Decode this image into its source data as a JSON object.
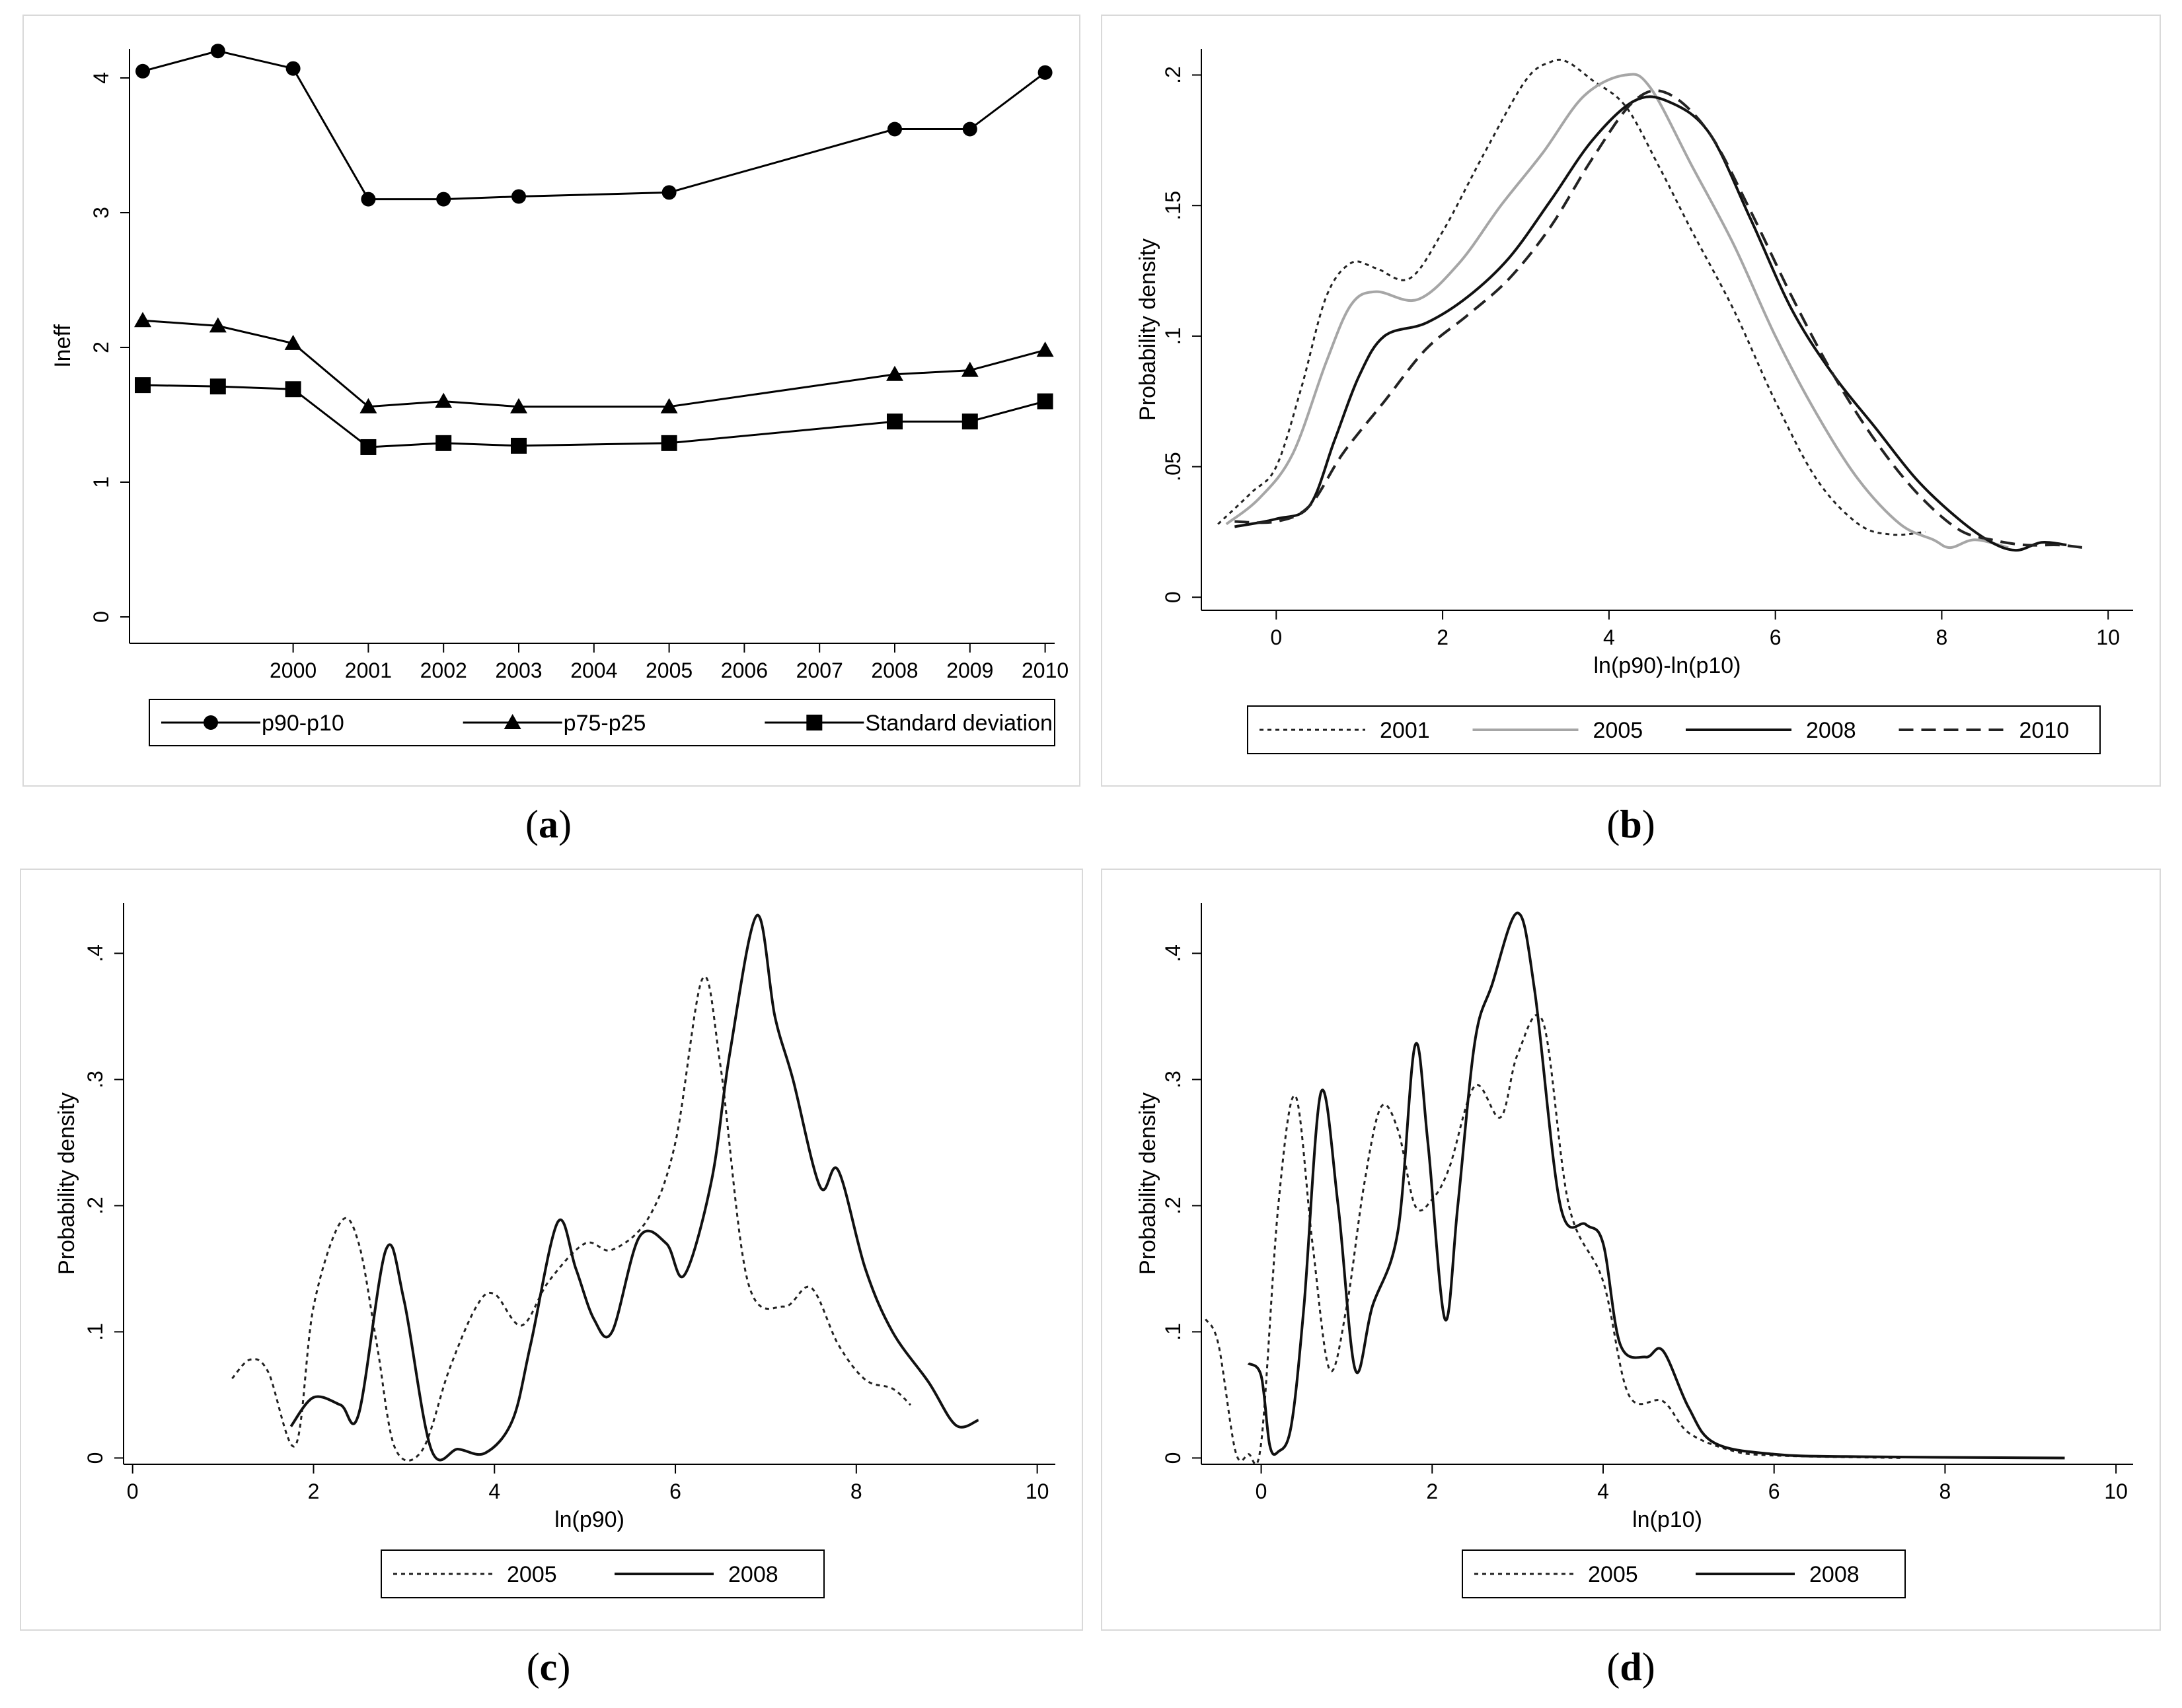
{
  "panel_labels": [
    {
      "open": "(",
      "letter": "a",
      "close": ")"
    },
    {
      "open": "(",
      "letter": "b",
      "close": ")"
    },
    {
      "open": "(",
      "letter": "c",
      "close": ")"
    },
    {
      "open": "(",
      "letter": "d",
      "close": ")"
    }
  ],
  "chart_data": [
    {
      "id": "a",
      "type": "line",
      "title": "",
      "ylabel": "Ineff",
      "xlabel": "",
      "ylim": [
        0,
        4.2
      ],
      "yticks": [
        "0",
        "1",
        "2",
        "3",
        "4"
      ],
      "xticks": [
        "2000",
        "2001",
        "2002",
        "2003",
        "2004",
        "2005",
        "2006",
        "2007",
        "2008",
        "2009",
        "2010"
      ],
      "legend": {
        "position": "bottom",
        "entries": [
          "p90-p10",
          "p75-p25",
          "Standard deviation"
        ]
      },
      "series": [
        {
          "name": "p90-p10",
          "marker": "circle",
          "x": [
            1998,
            1999,
            2000,
            2001,
            2002,
            2003,
            2005,
            2008,
            2009,
            2010
          ],
          "values": [
            4.05,
            4.2,
            4.07,
            3.1,
            3.1,
            3.12,
            3.15,
            3.62,
            3.62,
            4.04
          ]
        },
        {
          "name": "p75-p25",
          "marker": "triangle",
          "x": [
            1998,
            1999,
            2000,
            2001,
            2002,
            2003,
            2005,
            2008,
            2009,
            2010
          ],
          "values": [
            2.2,
            2.16,
            2.03,
            1.56,
            1.6,
            1.56,
            1.56,
            1.8,
            1.83,
            1.98
          ]
        },
        {
          "name": "Standard deviation",
          "marker": "square",
          "x": [
            1998,
            1999,
            2000,
            2001,
            2002,
            2003,
            2005,
            2008,
            2009,
            2010
          ],
          "values": [
            1.72,
            1.71,
            1.69,
            1.26,
            1.29,
            1.27,
            1.29,
            1.45,
            1.45,
            1.6
          ]
        }
      ]
    },
    {
      "id": "b",
      "type": "line",
      "title": "",
      "ylabel": "Probability density",
      "xlabel": "ln(p90)-ln(p10)",
      "xlim": [
        -0.9,
        10.3
      ],
      "ylim": [
        -0.005,
        0.21
      ],
      "xticks": [
        "0",
        "2",
        "4",
        "6",
        "8",
        "10"
      ],
      "yticks": [
        "0",
        ".05",
        ".1",
        ".15",
        ".2"
      ],
      "legend": {
        "position": "bottom",
        "entries": [
          "2001",
          "2005",
          "2008",
          "2010"
        ]
      },
      "series": [
        {
          "name": "2001",
          "style": "dotted",
          "x": [
            -0.7,
            -0.3,
            0,
            0.3,
            0.6,
            0.9,
            1.2,
            1.6,
            2,
            2.5,
            3,
            3.3,
            3.5,
            3.8,
            4.2,
            4.6,
            5,
            5.5,
            6,
            6.5,
            7,
            7.4,
            7.8
          ],
          "values": [
            0.028,
            0.04,
            0.05,
            0.08,
            0.115,
            0.128,
            0.126,
            0.122,
            0.14,
            0.17,
            0.198,
            0.205,
            0.205,
            0.198,
            0.188,
            0.165,
            0.14,
            0.11,
            0.075,
            0.045,
            0.028,
            0.024,
            0.025
          ]
        },
        {
          "name": "2005",
          "style": "solid-gray",
          "x": [
            -0.6,
            -0.2,
            0.2,
            0.6,
            0.9,
            1.2,
            1.7,
            2.2,
            2.7,
            3.2,
            3.7,
            4.2,
            4.5,
            5,
            5.5,
            6,
            6.5,
            7,
            7.5,
            7.9,
            8.1,
            8.4,
            8.8
          ],
          "values": [
            0.028,
            0.038,
            0.055,
            0.09,
            0.112,
            0.117,
            0.114,
            0.128,
            0.15,
            0.17,
            0.192,
            0.2,
            0.195,
            0.165,
            0.135,
            0.1,
            0.07,
            0.045,
            0.028,
            0.022,
            0.019,
            0.022,
            0.019
          ]
        },
        {
          "name": "2008",
          "style": "solid",
          "x": [
            -0.5,
            0,
            0.4,
            0.7,
            1,
            1.3,
            1.8,
            2.3,
            2.8,
            3.3,
            3.8,
            4.3,
            4.7,
            5.2,
            5.7,
            6.2,
            6.7,
            7.2,
            7.7,
            8.2,
            8.6,
            8.9,
            9.2,
            9.5
          ],
          "values": [
            0.027,
            0.03,
            0.035,
            0.06,
            0.085,
            0.1,
            0.105,
            0.115,
            0.13,
            0.152,
            0.175,
            0.19,
            0.19,
            0.178,
            0.145,
            0.11,
            0.085,
            0.065,
            0.045,
            0.03,
            0.021,
            0.018,
            0.021,
            0.02
          ]
        },
        {
          "name": "2010",
          "style": "dashed",
          "x": [
            -0.5,
            0,
            0.4,
            0.8,
            1.3,
            1.8,
            2.3,
            2.8,
            3.3,
            3.8,
            4.3,
            4.7,
            5.2,
            5.7,
            6.2,
            6.7,
            7.2,
            7.7,
            8.2,
            8.6,
            9,
            9.4,
            9.7
          ],
          "values": [
            0.029,
            0.029,
            0.035,
            0.055,
            0.075,
            0.095,
            0.108,
            0.122,
            0.142,
            0.168,
            0.19,
            0.193,
            0.178,
            0.148,
            0.115,
            0.085,
            0.06,
            0.04,
            0.026,
            0.022,
            0.02,
            0.02,
            0.019
          ]
        }
      ]
    },
    {
      "id": "c",
      "type": "line",
      "title": "",
      "ylabel": "Probability density",
      "xlabel": "ln(p90)",
      "xlim": [
        -0.1,
        10.2
      ],
      "ylim": [
        -0.005,
        0.44
      ],
      "xticks": [
        "0",
        "2",
        "4",
        "6",
        "8",
        "10"
      ],
      "yticks": [
        "0",
        ".1",
        ".2",
        ".3",
        ".4"
      ],
      "legend": {
        "position": "bottom",
        "entries": [
          "2005",
          "2008"
        ]
      },
      "series": [
        {
          "name": "2005",
          "style": "dotted",
          "x": [
            1.1,
            1.3,
            1.5,
            1.8,
            2,
            2.3,
            2.5,
            2.7,
            2.9,
            3.2,
            3.5,
            3.8,
            4,
            4.3,
            4.6,
            5,
            5.3,
            5.7,
            6,
            6.3,
            6.5,
            6.8,
            7.2,
            7.5,
            7.8,
            8.1,
            8.4,
            8.6
          ],
          "values": [
            0.063,
            0.078,
            0.068,
            0.01,
            0.12,
            0.187,
            0.17,
            0.09,
            0.008,
            0.006,
            0.07,
            0.12,
            0.13,
            0.105,
            0.14,
            0.17,
            0.165,
            0.19,
            0.25,
            0.38,
            0.31,
            0.14,
            0.12,
            0.135,
            0.09,
            0.062,
            0.055,
            0.042
          ]
        },
        {
          "name": "2008",
          "style": "solid",
          "x": [
            1.75,
            2,
            2.3,
            2.5,
            2.8,
            3,
            3.3,
            3.6,
            3.9,
            4.2,
            4.4,
            4.7,
            4.9,
            5.1,
            5.3,
            5.6,
            5.9,
            6.1,
            6.4,
            6.6,
            6.9,
            7.1,
            7.3,
            7.6,
            7.8,
            8.1,
            8.4,
            8.8,
            9.1,
            9.35
          ],
          "values": [
            0.025,
            0.048,
            0.042,
            0.035,
            0.165,
            0.125,
            0.007,
            0.007,
            0.004,
            0.03,
            0.09,
            0.187,
            0.15,
            0.11,
            0.1,
            0.175,
            0.17,
            0.145,
            0.22,
            0.32,
            0.43,
            0.35,
            0.3,
            0.215,
            0.228,
            0.15,
            0.1,
            0.06,
            0.026,
            0.03
          ]
        }
      ]
    },
    {
      "id": "d",
      "type": "line",
      "title": "",
      "ylabel": "Probability density",
      "xlabel": "ln(p10)",
      "xlim": [
        -0.7,
        10.2
      ],
      "ylim": [
        -0.005,
        0.44
      ],
      "xticks": [
        "0",
        "2",
        "4",
        "6",
        "8",
        "10"
      ],
      "yticks": [
        "0",
        ".1",
        ".2",
        ".3",
        ".4"
      ],
      "legend": {
        "position": "bottom",
        "entries": [
          "2005",
          "2008"
        ]
      },
      "series": [
        {
          "name": "2005",
          "style": "dotted",
          "x": [
            -0.65,
            -0.5,
            -0.3,
            -0.15,
            0,
            0.2,
            0.4,
            0.6,
            0.8,
            1,
            1.2,
            1.4,
            1.6,
            1.8,
            2,
            2.2,
            2.5,
            2.8,
            3,
            3.3,
            3.6,
            4,
            4.3,
            4.7,
            5,
            5.5,
            6,
            7.5
          ],
          "values": [
            0.11,
            0.09,
            0.005,
            0.003,
            0.012,
            0.2,
            0.287,
            0.17,
            0.07,
            0.12,
            0.215,
            0.278,
            0.26,
            0.2,
            0.205,
            0.23,
            0.295,
            0.27,
            0.32,
            0.345,
            0.2,
            0.14,
            0.05,
            0.045,
            0.02,
            0.006,
            0.002,
            0
          ]
        },
        {
          "name": "2008",
          "style": "solid",
          "x": [
            -0.15,
            0,
            0.1,
            0.2,
            0.35,
            0.5,
            0.7,
            0.9,
            1.1,
            1.3,
            1.6,
            1.8,
            1.95,
            2.15,
            2.3,
            2.5,
            2.7,
            3,
            3.2,
            3.5,
            3.8,
            4,
            4.2,
            4.5,
            4.7,
            5,
            5.3,
            6,
            7,
            9.4
          ],
          "values": [
            0.075,
            0.065,
            0.01,
            0.005,
            0.025,
            0.12,
            0.29,
            0.2,
            0.07,
            0.12,
            0.18,
            0.327,
            0.25,
            0.11,
            0.2,
            0.33,
            0.375,
            0.432,
            0.37,
            0.2,
            0.185,
            0.17,
            0.09,
            0.08,
            0.085,
            0.04,
            0.012,
            0.003,
            0.001,
            0
          ]
        }
      ]
    }
  ]
}
